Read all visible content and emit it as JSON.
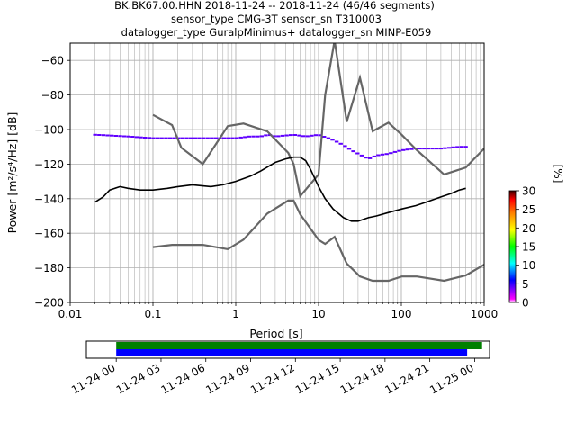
{
  "title": {
    "line1": "BK.BK67.00.HHN   2018-11-24 -- 2018-11-24  (46/46 segments)",
    "line2": "sensor_type CMG-3T sensor_sn T310003",
    "line3": "datalogger_type GuralpMinimus+ datalogger_sn MINP-E059"
  },
  "chart_data": [
    {
      "type": "heatmap",
      "subtype": "probabilistic-power-spectral-density",
      "xlabel": "Period [s]",
      "ylabel": "Power [m²/s⁴/Hz] [dB]",
      "xscale": "log",
      "xlim": [
        0.01,
        1000
      ],
      "ylim": [
        -200,
        -50
      ],
      "xticks": [
        0.01,
        0.1,
        1,
        10,
        100,
        1000
      ],
      "xtick_labels": [
        "0.01",
        "0.1",
        "1",
        "10",
        "100",
        "1000"
      ],
      "yticks": [
        -200,
        -180,
        -160,
        -140,
        -120,
        -100,
        -80,
        -60
      ],
      "grid": true,
      "colorbar": {
        "label": "[%]",
        "min": 0,
        "max": 30,
        "ticks": [
          0,
          5,
          10,
          15,
          20,
          25,
          30
        ],
        "colormap": [
          "#ffffff",
          "#ff00ff",
          "#0000ff",
          "#00ffff",
          "#00ff00",
          "#ffff00",
          "#ff8000",
          "#ff0000",
          "#400000"
        ]
      },
      "mean_curve": {
        "period": [
          0.02,
          0.025,
          0.03,
          0.04,
          0.05,
          0.07,
          0.1,
          0.15,
          0.2,
          0.3,
          0.5,
          0.7,
          1.0,
          1.5,
          2.0,
          3.0,
          4.0,
          5.0,
          6.0,
          7.0,
          8.0,
          10.0,
          12.0,
          15.0,
          20.0,
          25.0,
          30.0,
          40.0,
          50.0,
          70.0,
          100.0,
          150.0,
          200.0,
          300.0,
          400.0,
          500.0,
          600.0
        ],
        "power": [
          -142,
          -139,
          -135,
          -133,
          -134,
          -135,
          -135,
          -134,
          -133,
          -132,
          -133,
          -132,
          -130,
          -127,
          -124,
          -119,
          -117,
          -116,
          -116,
          -118,
          -123,
          -133,
          -140,
          -146,
          -151,
          -153,
          -153,
          -151,
          -150,
          -148,
          -146,
          -144,
          -142,
          -139,
          -137,
          -135,
          -134
        ]
      },
      "density_band": {
        "period": [
          0.02,
          0.025,
          0.03,
          0.04,
          0.05,
          0.07,
          0.1,
          0.15,
          0.2,
          0.3,
          0.5,
          0.7,
          1.0,
          1.5,
          2.0,
          3.0,
          4.0,
          5.0,
          6.0,
          7.0,
          8.0,
          10.0,
          12.0,
          15.0,
          20.0,
          25.0,
          30.0,
          40.0,
          50.0,
          70.0,
          100.0,
          150.0,
          200.0,
          300.0,
          400.0,
          500.0,
          600.0
        ],
        "upper": [
          -140,
          -136,
          -127,
          -129,
          -130,
          -131,
          -130,
          -129,
          -128,
          -127,
          -128,
          -127,
          -126,
          -123,
          -120,
          -117,
          -115,
          -114,
          -115,
          -116,
          -119,
          -128,
          -135,
          -141,
          -146,
          -148,
          -148,
          -146,
          -145,
          -143,
          -141,
          -139,
          -137,
          -134,
          -132,
          -130,
          -129
        ],
        "lower": [
          -145,
          -142,
          -139,
          -138,
          -138,
          -139,
          -139,
          -138,
          -137,
          -137,
          -137,
          -136,
          -134,
          -131,
          -128,
          -123,
          -120,
          -119,
          -119,
          -121,
          -127,
          -138,
          -145,
          -152,
          -157,
          -161,
          -162,
          -160,
          -158,
          -154,
          -152,
          -150,
          -148,
          -145,
          -143,
          -141,
          -140
        ]
      },
      "outlier_band": {
        "period": [
          0.02,
          0.05,
          0.1,
          0.2,
          0.5,
          0.7,
          1.0,
          1.5,
          2.0,
          2.5,
          3.0,
          5.0,
          7.0,
          10.0,
          15.0,
          20.0,
          25.0,
          30.0,
          40.0,
          50.0,
          70.0,
          100.0,
          150.0,
          200.0,
          300.0,
          500.0,
          600.0
        ],
        "power": [
          -103,
          -104,
          -105,
          -105,
          -105,
          -105,
          -105,
          -104,
          -104,
          -103,
          -104,
          -103,
          -104,
          -103,
          -106,
          -109,
          -112,
          -114,
          -117,
          -115,
          -114,
          -112,
          -111,
          -111,
          -111,
          -110,
          -110
        ]
      },
      "noise_models": [
        {
          "period": [
            0.1,
            0.17,
            0.22,
            0.4,
            0.8,
            1.24,
            2.4,
            4.3,
            5.0,
            6.0,
            10.0,
            12.0,
            15.6,
            21.9,
            31.6,
            45.0,
            70.0,
            101.0,
            154.0,
            328.0,
            600.0,
            1000.0
          ],
          "power": [
            -91.5,
            -97.4,
            -110.5,
            -120.0,
            -98.0,
            -96.5,
            -101.0,
            -113.5,
            -120.0,
            -138.5,
            -126.0,
            -80.1,
            -48.5,
            -95.5,
            -70.0,
            -101.0,
            -96.0,
            -103.0,
            -112.0,
            -126.0,
            -122.0,
            -111.0
          ]
        },
        {
          "period": [
            0.1,
            0.17,
            0.4,
            0.8,
            1.24,
            2.4,
            4.3,
            5.0,
            6.0,
            10.0,
            12.0,
            15.6,
            21.9,
            31.6,
            45.0,
            70.0,
            101.0,
            154.0,
            328.0,
            600.0,
            1000.0
          ],
          "power": [
            -168.0,
            -166.7,
            -166.7,
            -169.2,
            -163.7,
            -148.6,
            -141.1,
            -141.1,
            -149.0,
            -163.8,
            -166.2,
            -162.1,
            -177.5,
            -185.0,
            -187.5,
            -187.5,
            -185.0,
            -185.0,
            -187.5,
            -184.4,
            -178.2
          ]
        }
      ]
    },
    {
      "type": "timeline",
      "xticks": [
        "11-24 00",
        "11-24 03",
        "11-24 06",
        "11-24 09",
        "11-24 12",
        "11-24 15",
        "11-24 18",
        "11-24 21",
        "11-25 00"
      ],
      "xlim_hours": [
        -2,
        25
      ],
      "bars": [
        {
          "name": "",
          "start_hours": 0.0,
          "end_hours": 24.5,
          "color": "#008000"
        },
        {
          "name": "",
          "start_hours": 0.0,
          "end_hours": 23.5,
          "color": "#0000ff"
        }
      ]
    }
  ]
}
